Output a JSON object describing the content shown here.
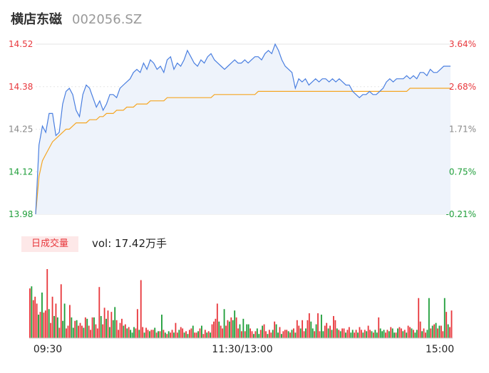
{
  "header": {
    "name": "横店东磁",
    "code": "002056.SZ"
  },
  "volume_tab": {
    "label": "日成交量"
  },
  "volume_readout": {
    "text": "vol: 17.42万手"
  },
  "colors": {
    "price_line": "#4a7fe0",
    "avg_line": "#f5a623",
    "up": "#e8383d",
    "down": "#1f9e3a",
    "area_fill": "#eef3fb",
    "grid": "#e6e6e6"
  },
  "chart_data": [
    {
      "type": "line",
      "title": "",
      "price_ticks": [
        "14.52",
        "14.38",
        "14.25",
        "14.12",
        "13.98"
      ],
      "pct_ticks": [
        "3.64%",
        "2.68%",
        "1.71%",
        "0.75%",
        "-0.21%"
      ],
      "ylim": [
        13.98,
        14.52
      ],
      "x_ticks": [
        "09:30",
        "11:30/13:00",
        "15:00"
      ],
      "series": [
        {
          "role": "price",
          "values": [
            13.98,
            14.2,
            14.26,
            14.24,
            14.3,
            14.3,
            14.23,
            14.24,
            14.33,
            14.37,
            14.38,
            14.36,
            14.31,
            14.29,
            14.36,
            14.39,
            14.38,
            14.35,
            14.32,
            14.34,
            14.31,
            14.33,
            14.36,
            14.36,
            14.35,
            14.38,
            14.39,
            14.4,
            14.41,
            14.43,
            14.44,
            14.43,
            14.46,
            14.44,
            14.47,
            14.46,
            14.44,
            14.45,
            14.43,
            14.47,
            14.48,
            14.44,
            14.46,
            14.45,
            14.47,
            14.5,
            14.48,
            14.46,
            14.45,
            14.47,
            14.46,
            14.48,
            14.49,
            14.47,
            14.46,
            14.45,
            14.44,
            14.45,
            14.46,
            14.47,
            14.46,
            14.46,
            14.47,
            14.46,
            14.47,
            14.48,
            14.48,
            14.47,
            14.49,
            14.5,
            14.49,
            14.52,
            14.5,
            14.47,
            14.45,
            14.44,
            14.43,
            14.38,
            14.41,
            14.4,
            14.41,
            14.39,
            14.4,
            14.41,
            14.4,
            14.41,
            14.41,
            14.4,
            14.41,
            14.4,
            14.41,
            14.4,
            14.39,
            14.39,
            14.37,
            14.36,
            14.35,
            14.36,
            14.36,
            14.37,
            14.36,
            14.36,
            14.37,
            14.38,
            14.4,
            14.41,
            14.4,
            14.41,
            14.41,
            14.41,
            14.42,
            14.41,
            14.42,
            14.41,
            14.43,
            14.43,
            14.42,
            14.44,
            14.43,
            14.43,
            14.44,
            14.45,
            14.45,
            14.45
          ],
          "name": ""
        },
        {
          "role": "average",
          "values": [
            13.98,
            14.1,
            14.15,
            14.17,
            14.19,
            14.21,
            14.22,
            14.23,
            14.24,
            14.25,
            14.25,
            14.26,
            14.27,
            14.27,
            14.27,
            14.27,
            14.28,
            14.28,
            14.28,
            14.29,
            14.29,
            14.3,
            14.3,
            14.3,
            14.31,
            14.31,
            14.31,
            14.32,
            14.32,
            14.32,
            14.33,
            14.33,
            14.33,
            14.33,
            14.34,
            14.34,
            14.34,
            14.34,
            14.34,
            14.35,
            14.35,
            14.35,
            14.35,
            14.35,
            14.35,
            14.35,
            14.35,
            14.35,
            14.35,
            14.35,
            14.35,
            14.35,
            14.35,
            14.36,
            14.36,
            14.36,
            14.36,
            14.36,
            14.36,
            14.36,
            14.36,
            14.36,
            14.36,
            14.36,
            14.36,
            14.36,
            14.37,
            14.37,
            14.37,
            14.37,
            14.37,
            14.37,
            14.37,
            14.37,
            14.37,
            14.37,
            14.37,
            14.37,
            14.37,
            14.37,
            14.37,
            14.37,
            14.37,
            14.37,
            14.37,
            14.37,
            14.37,
            14.37,
            14.37,
            14.37,
            14.37,
            14.37,
            14.37,
            14.37,
            14.37,
            14.37,
            14.37,
            14.37,
            14.37,
            14.37,
            14.37,
            14.37,
            14.37,
            14.37,
            14.37,
            14.37,
            14.37,
            14.37,
            14.37,
            14.37,
            14.37,
            14.38,
            14.38,
            14.38,
            14.38,
            14.38,
            14.38,
            14.38,
            14.38,
            14.38,
            14.38,
            14.38,
            14.38,
            14.38
          ],
          "name": ""
        }
      ]
    },
    {
      "type": "bar",
      "title": "",
      "ylim": [
        0,
        100
      ],
      "series": [
        {
          "name": "",
          "values": [
            72,
            75,
            55,
            60,
            50,
            34,
            38,
            66,
            37,
            40,
            100,
            42,
            22,
            60,
            32,
            50,
            30,
            15,
            78,
            25,
            50,
            14,
            18,
            48,
            30,
            15,
            25,
            26,
            18,
            22,
            18,
            15,
            30,
            28,
            18,
            12,
            30,
            30,
            20,
            14,
            74,
            32,
            20,
            44,
            28,
            40,
            16,
            38,
            26,
            45,
            26,
            12,
            22,
            28,
            18,
            20,
            14,
            16,
            12,
            8,
            16,
            14,
            42,
            12,
            84,
            16,
            8,
            15,
            12,
            10,
            12,
            12,
            15,
            8,
            10,
            10,
            34,
            12,
            8,
            6,
            10,
            8,
            12,
            8,
            22,
            8,
            12,
            16,
            14,
            8,
            10,
            6,
            12,
            14,
            18,
            8,
            8,
            10,
            14,
            18,
            6,
            12,
            8,
            10,
            8,
            20,
            24,
            28,
            50,
            24,
            18,
            14,
            42,
            18,
            26,
            24,
            30,
            26,
            40,
            30,
            14,
            20,
            10,
            28,
            10,
            20,
            20,
            14,
            10,
            6,
            10,
            14,
            6,
            12,
            18,
            20,
            10,
            6,
            12,
            8,
            12,
            24,
            20,
            8,
            16,
            6,
            10,
            12,
            12,
            10,
            8,
            12,
            14,
            8,
            26,
            18,
            14,
            26,
            10,
            14,
            26,
            36,
            24,
            14,
            10,
            20,
            36,
            10,
            34,
            10,
            18,
            22,
            14,
            18,
            12,
            32,
            26,
            14,
            12,
            10,
            14,
            14,
            8,
            12,
            16,
            8,
            12,
            8,
            12,
            8,
            16,
            12,
            8,
            12,
            10,
            18,
            12,
            10,
            8,
            12,
            8,
            30,
            14,
            10,
            12,
            8,
            12,
            10,
            16,
            14,
            8,
            8,
            14,
            16,
            14,
            10,
            12,
            8,
            18,
            16,
            14,
            12,
            8,
            12,
            58,
            24,
            10,
            14,
            8,
            12,
            58,
            14,
            18,
            20,
            22,
            14,
            18,
            18,
            10,
            58,
            38,
            20,
            16,
            40
          ],
          "up": [
            1,
            0,
            1,
            1,
            1,
            0,
            1,
            0,
            1,
            1,
            1,
            0,
            1,
            1,
            0,
            1,
            0,
            1,
            1,
            0,
            0,
            1,
            1,
            1,
            0,
            0,
            1,
            0,
            1,
            1,
            1,
            0,
            1,
            0,
            1,
            1,
            1,
            0,
            1,
            1,
            1,
            0,
            1,
            1,
            0,
            1,
            0,
            1,
            0,
            0,
            1,
            1,
            1,
            1,
            0,
            1,
            0,
            1,
            0,
            0,
            0,
            1,
            1,
            0,
            1,
            1,
            0,
            1,
            1,
            0,
            1,
            1,
            0,
            1,
            0,
            1,
            0,
            1,
            0,
            1,
            0,
            1,
            1,
            0,
            1,
            1,
            0,
            1,
            1,
            0,
            1,
            0,
            1,
            1,
            0,
            1,
            1,
            0,
            1,
            0,
            1,
            1,
            0,
            1,
            0,
            1,
            1,
            1,
            1,
            0,
            1,
            1,
            0,
            1,
            1,
            0,
            1,
            0,
            0,
            1,
            1,
            0,
            1,
            0,
            1,
            0,
            0,
            1,
            1,
            0,
            1,
            0,
            0,
            1,
            0,
            1,
            1,
            0,
            1,
            1,
            0,
            1,
            0,
            0,
            1,
            0,
            1,
            1,
            1,
            0,
            1,
            0,
            1,
            0,
            1,
            1,
            0,
            1,
            1,
            0,
            1,
            1,
            0,
            0,
            1,
            0,
            1,
            1,
            0,
            0,
            1,
            1,
            0,
            1,
            0,
            1,
            1,
            0,
            1,
            0,
            1,
            1,
            0,
            1,
            1,
            0,
            0,
            1,
            1,
            0,
            1,
            1,
            0,
            1,
            0,
            1,
            1,
            0,
            1,
            0,
            0,
            1,
            0,
            0,
            0,
            1,
            1,
            0,
            1,
            0,
            0,
            1,
            0,
            1,
            1,
            0,
            1,
            0,
            1,
            1,
            0,
            1,
            0,
            0,
            1,
            1,
            0,
            1,
            1,
            0,
            0,
            1,
            0,
            1,
            0,
            1,
            0,
            1,
            1,
            0,
            1,
            0,
            1,
            1,
            0,
            1,
            1,
            1,
            0
          ]
        }
      ]
    }
  ]
}
